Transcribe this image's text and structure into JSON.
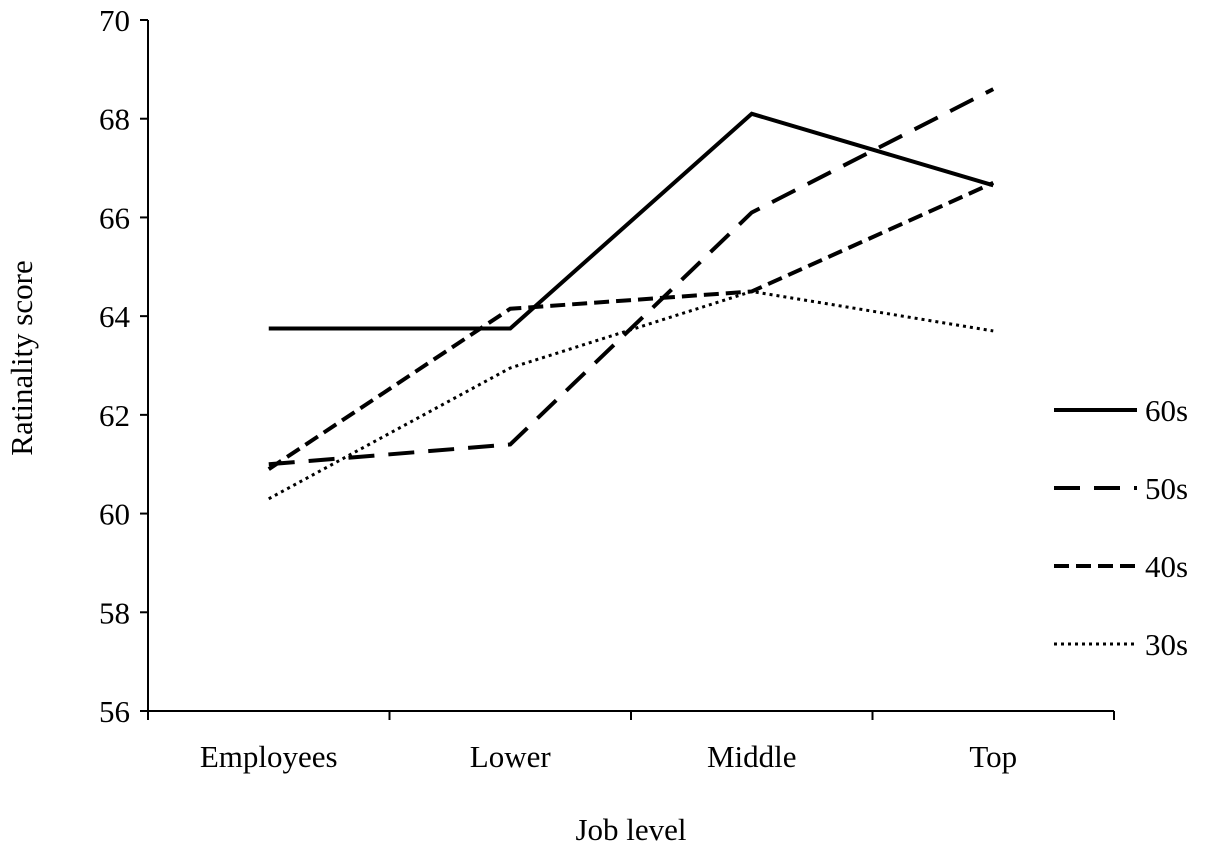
{
  "chart_data": {
    "type": "line",
    "xlabel": "Job level",
    "ylabel": "Ratinality score",
    "categories": [
      "Employees",
      "Lower",
      "Middle",
      "Top"
    ],
    "ylim": [
      56,
      70
    ],
    "yticks": [
      56,
      58,
      60,
      62,
      64,
      66,
      68,
      70
    ],
    "grid": false,
    "legend_position": "right",
    "series": [
      {
        "name": "60s",
        "values": [
          63.75,
          63.75,
          68.1,
          66.65
        ],
        "style": "solid"
      },
      {
        "name": "50s",
        "values": [
          61.0,
          61.4,
          66.1,
          68.6
        ],
        "style": "long-dash"
      },
      {
        "name": "40s",
        "values": [
          60.9,
          64.15,
          64.5,
          66.7
        ],
        "style": "dash"
      },
      {
        "name": "30s",
        "values": [
          60.3,
          62.95,
          64.5,
          63.7
        ],
        "style": "dot"
      }
    ],
    "line_color": "#000000"
  }
}
